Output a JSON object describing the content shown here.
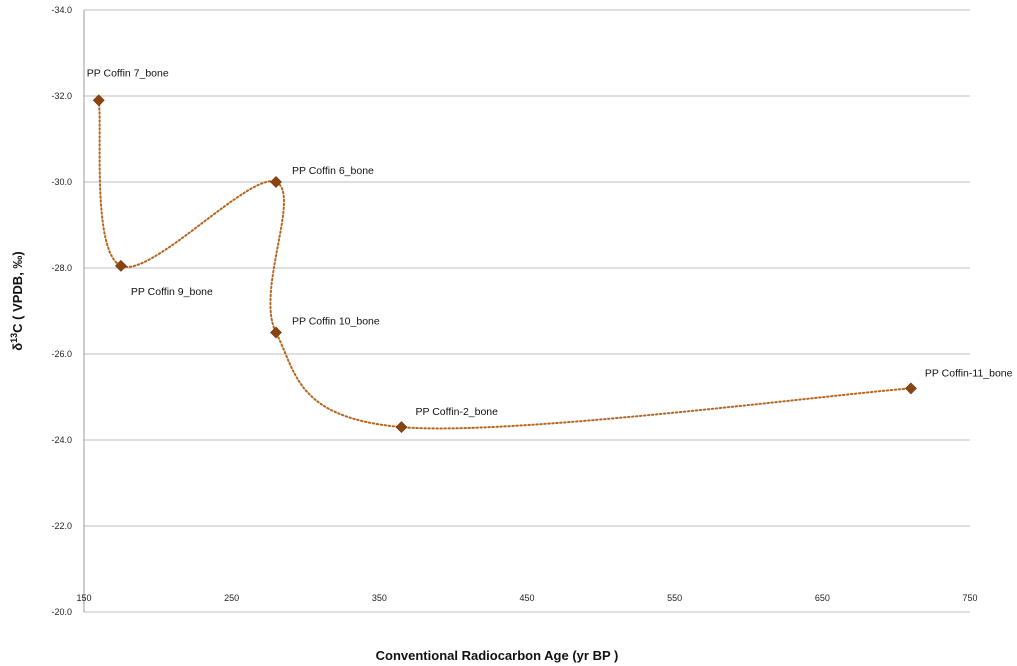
{
  "chart_data": {
    "type": "scatter",
    "title": "",
    "xlabel": "Conventional Radiocarbon Age (yr BP  )",
    "ylabel": "δ13C  ( VPDB, ‰)",
    "ylabel_parts": {
      "prefix": "δ",
      "sup": "13",
      "suffix": "C  ( VPDB, ‰)"
    },
    "xlim": [
      150,
      750
    ],
    "ylim": [
      -20.0,
      -34.0
    ],
    "y_inverted": true,
    "xticks": [
      150,
      250,
      350,
      450,
      550,
      650,
      750
    ],
    "yticks": [
      -20.0,
      -22.0,
      -24.0,
      -26.0,
      -28.0,
      -30.0,
      -32.0,
      -34.0
    ],
    "xtick_labels": [
      "150",
      "250",
      "350",
      "450",
      "550",
      "650",
      "750"
    ],
    "ytick_labels": [
      "-20.0",
      "-22.0",
      "-24.0",
      "-26.0",
      "-28.0",
      "-30.0",
      "-32.0",
      "-34.0"
    ],
    "grid": {
      "horizontal": true,
      "vertical": false
    },
    "connector": "smoothed dotted line",
    "marker": "diamond",
    "color": "#8B4513",
    "points": [
      {
        "x": 160,
        "y": -31.9,
        "label": "PP Coffin 7_bone",
        "label_pos": "above"
      },
      {
        "x": 175,
        "y": -28.05,
        "label": "PP Coffin 9_bone",
        "label_pos": "below"
      },
      {
        "x": 280,
        "y": -30.0,
        "label": "PP Coffin 6_bone",
        "label_pos": "right"
      },
      {
        "x": 280,
        "y": -26.5,
        "label": "PP Coffin 10_bone",
        "label_pos": "right"
      },
      {
        "x": 365,
        "y": -24.3,
        "label": "PP Coffin-2_bone",
        "label_pos": "above-right"
      },
      {
        "x": 710,
        "y": -25.2,
        "label": "PP Coffin-11_bone",
        "label_pos": "above-right"
      }
    ]
  }
}
